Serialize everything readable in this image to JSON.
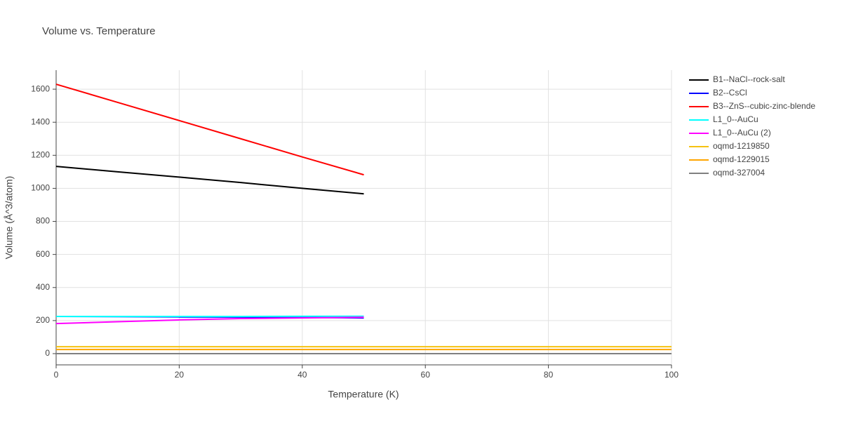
{
  "chart_data": {
    "type": "line",
    "title": "Volume vs. Temperature",
    "x_label": "Temperature (K)",
    "y_label": "Volume (Å^3/atom)",
    "xlim": [
      0,
      100
    ],
    "ylim": [
      -68,
      1715
    ],
    "xticks": [
      0,
      20,
      40,
      60,
      80,
      100
    ],
    "yticks": [
      0,
      200,
      400,
      600,
      800,
      1000,
      1200,
      1400,
      1600
    ],
    "grid": true,
    "legend": "right",
    "series": [
      {
        "name": "B1--NaCl--rock-salt",
        "color": "#000000",
        "x": [
          0,
          10,
          20,
          30,
          40,
          50
        ],
        "values": [
          1133,
          1100,
          1068,
          1035,
          1000,
          967
        ]
      },
      {
        "name": "B2--CsCl",
        "color": "#0000ff",
        "x": [
          0,
          10,
          20,
          30,
          40,
          50
        ],
        "values": [
          225,
          224,
          222,
          221,
          219,
          216
        ]
      },
      {
        "name": "B3--ZnS--cubic-zinc-blende",
        "color": "#ff0000",
        "x": [
          0,
          10,
          20,
          30,
          40,
          50
        ],
        "values": [
          1630,
          1520,
          1410,
          1300,
          1190,
          1082
        ]
      },
      {
        "name": "L1_0--AuCu",
        "color": "#00ffff",
        "x": [
          0,
          10,
          20,
          30,
          40,
          50
        ],
        "values": [
          225,
          225,
          225,
          225,
          226,
          226
        ]
      },
      {
        "name": "L1_0--AuCu (2)",
        "color": "#ff00ff",
        "x": [
          0,
          10,
          20,
          30,
          40,
          50
        ],
        "values": [
          182,
          193,
          204,
          212,
          216,
          220
        ]
      },
      {
        "name": "oqmd-1219850",
        "color": "#f5c211",
        "x": [
          0,
          100
        ],
        "values": [
          42,
          42
        ]
      },
      {
        "name": "oqmd-1229015",
        "color": "#ffa500",
        "x": [
          0,
          100
        ],
        "values": [
          25,
          25
        ]
      },
      {
        "name": "oqmd-327004",
        "color": "#808080",
        "x": [
          0,
          100
        ],
        "values": [
          0,
          0
        ]
      }
    ]
  }
}
